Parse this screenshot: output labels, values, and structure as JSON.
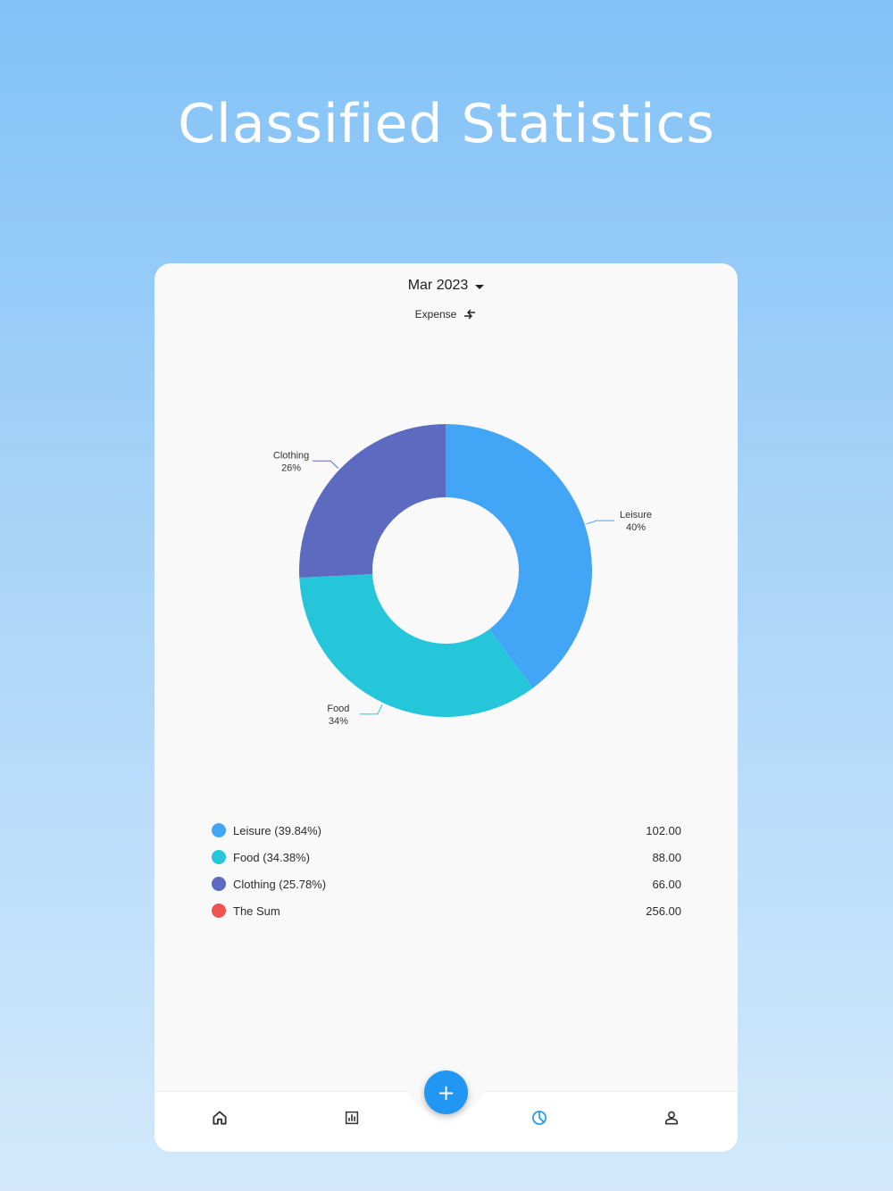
{
  "headline": "Classified Statistics",
  "header": {
    "month": "Mar 2023",
    "type_label": "Expense"
  },
  "chart_data": {
    "type": "pie",
    "donut": true,
    "slices": [
      {
        "label": "Leisure",
        "percent_label": "40%",
        "value": 102.0,
        "color": "#42a5f5"
      },
      {
        "label": "Food",
        "percent_label": "34%",
        "value": 88.0,
        "color": "#26c6da"
      },
      {
        "label": "Clothing",
        "percent_label": "26%",
        "value": 66.0,
        "color": "#5c6bc0"
      }
    ]
  },
  "legend": {
    "items": [
      {
        "label": "Leisure (39.84%)",
        "value": "102.00",
        "color": "#42a5f5"
      },
      {
        "label": "Food (34.38%)",
        "value": "88.00",
        "color": "#26c6da"
      },
      {
        "label": "Clothing (25.78%)",
        "value": "66.00",
        "color": "#5c6bc0"
      },
      {
        "label": "The Sum",
        "value": "256.00",
        "color": "#ef5350"
      }
    ]
  },
  "nav": {
    "items": [
      {
        "icon": "home-icon",
        "active": false
      },
      {
        "icon": "bar-chart-icon",
        "active": false
      },
      {
        "icon": "pie-chart-icon",
        "active": true
      },
      {
        "icon": "person-icon",
        "active": false
      }
    ],
    "fab_icon": "plus-icon",
    "active_color": "#2196f3",
    "inactive_color": "#333333"
  }
}
